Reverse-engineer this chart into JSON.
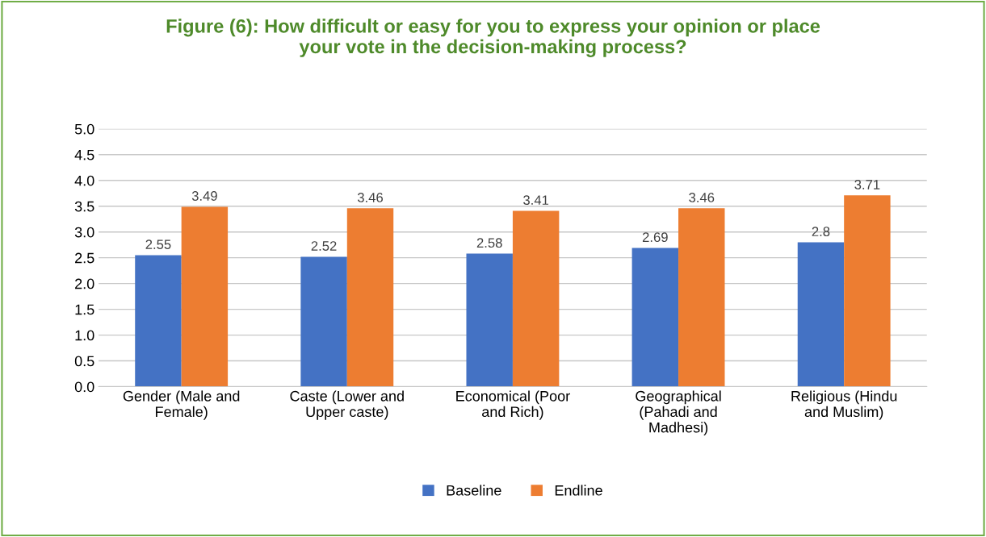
{
  "chart_data": {
    "type": "bar",
    "title": "Figure (6): How difficult or easy for you to express your opinion or place your vote in the decision-making process?",
    "categories": [
      "Gender (Male and Female)",
      "Caste (Lower and Upper caste)",
      "Economical (Poor and Rich)",
      "Geographical (Pahadi and Madhesi)",
      "Religious (Hindu and Muslim)"
    ],
    "series": [
      {
        "name": "Baseline",
        "color": "#4472c4",
        "values": [
          2.55,
          2.52,
          2.58,
          2.69,
          2.8
        ]
      },
      {
        "name": "Endline",
        "color": "#ed7d31",
        "values": [
          3.49,
          3.46,
          3.41,
          3.46,
          3.71
        ]
      }
    ],
    "ylim": [
      0,
      5
    ],
    "yticks": [
      {
        "value": 0,
        "label": "0.0"
      },
      {
        "value": 0.5,
        "label": "0.5"
      },
      {
        "value": 1,
        "label": "1.0"
      },
      {
        "value": 1.5,
        "label": "1.5"
      },
      {
        "value": 2,
        "label": "2.0"
      },
      {
        "value": 2.5,
        "label": "2.5"
      },
      {
        "value": 3,
        "label": "3.0"
      },
      {
        "value": 3.5,
        "label": "3.5"
      },
      {
        "value": 4,
        "label": "4.0"
      },
      {
        "value": 4.5,
        "label": "4.5"
      },
      {
        "value": 5,
        "label": "5.0"
      }
    ],
    "grid": "y",
    "legend": "bottom",
    "data_labels": true
  }
}
